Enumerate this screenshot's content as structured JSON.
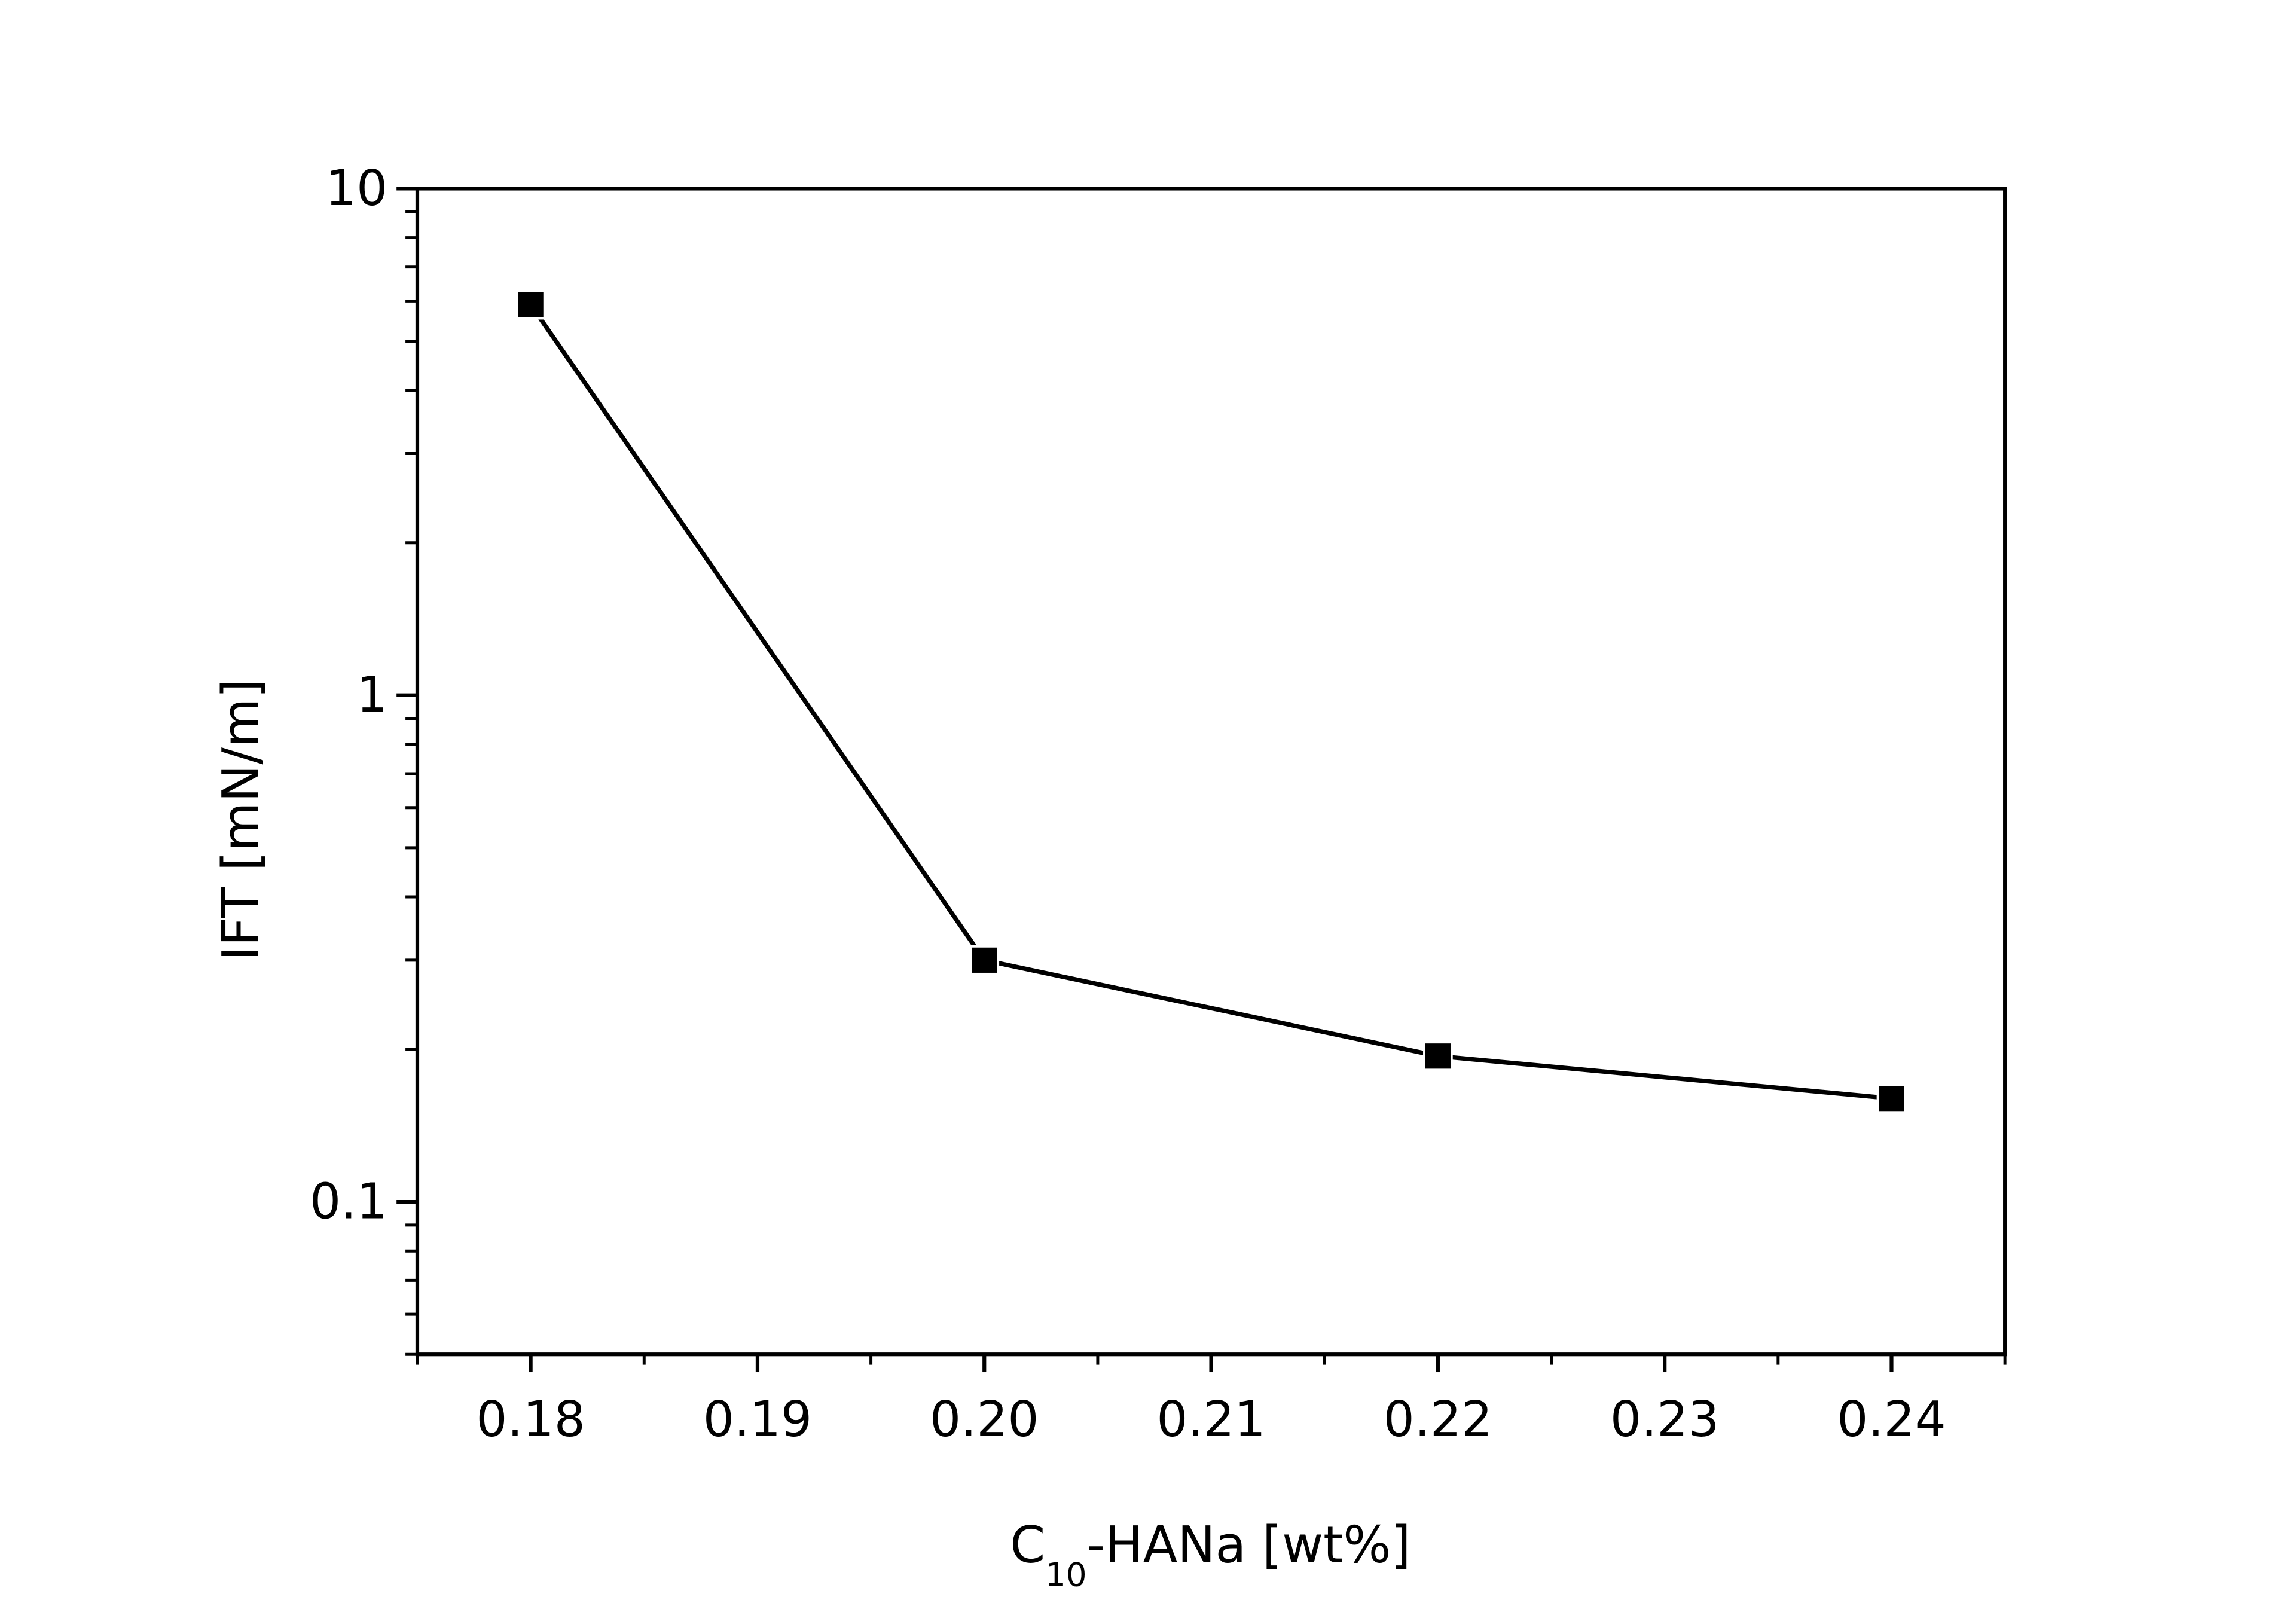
{
  "chart_data": {
    "type": "line",
    "x_label": [
      "C",
      "10",
      "-HANa [wt%]"
    ],
    "y_label": "IFT [mN/m]",
    "x": [
      0.18,
      0.2,
      0.22,
      0.24
    ],
    "series": [
      {
        "color": "#000000",
        "values": [
          5.9,
          0.3,
          0.194,
          0.16
        ]
      }
    ],
    "xlim": [
      0.175,
      0.245
    ],
    "xticks": [
      0.18,
      0.19,
      {
        "value": 0.2,
        "label": "0.20"
      },
      0.21,
      0.22,
      0.23,
      0.24
    ],
    "ylim": [
      0.05,
      10
    ],
    "yticks": [
      0.1,
      1,
      10
    ],
    "ylog": true,
    "marker": "square"
  }
}
